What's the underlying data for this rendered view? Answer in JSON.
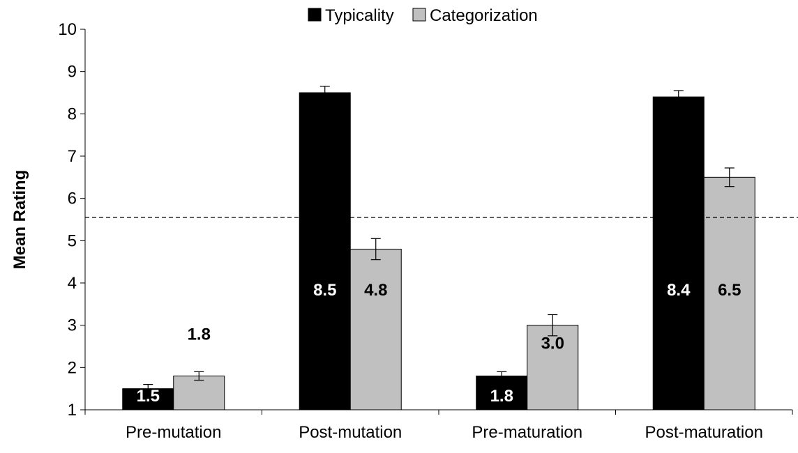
{
  "chart_data": {
    "type": "bar",
    "categories": [
      "Pre-mutation",
      "Post-mutation",
      "Pre-maturation",
      "Post-maturation"
    ],
    "series": [
      {
        "name": "Typicality",
        "color": "#000000",
        "values": [
          1.5,
          8.5,
          1.8,
          8.4
        ],
        "errors": [
          0.1,
          0.15,
          0.1,
          0.15
        ],
        "labels": [
          "1.5",
          "8.5",
          "1.8",
          "8.4"
        ]
      },
      {
        "name": "Categorization",
        "color": "#c0c0c0",
        "values": [
          1.8,
          4.8,
          3.0,
          6.5
        ],
        "errors": [
          0.1,
          0.25,
          0.25,
          0.22
        ],
        "labels": [
          "1.8",
          "4.8",
          "3.0",
          "6.5"
        ]
      }
    ],
    "ylabel": "Mean Rating",
    "xlabel": "",
    "ylim": [
      1,
      10
    ],
    "yticks": [
      "1",
      "2",
      "3",
      "4",
      "5",
      "6",
      "7",
      "8",
      "9",
      "10"
    ],
    "reference_line": 5.55,
    "legend_position": "top-center",
    "grid": false
  }
}
